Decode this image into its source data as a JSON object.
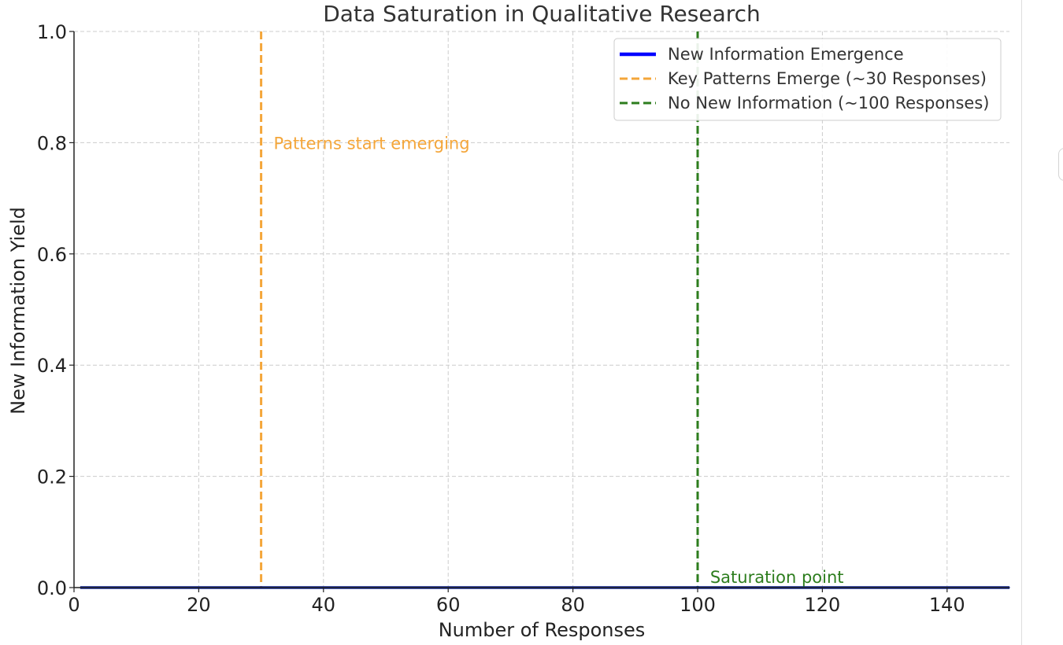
{
  "chart_data": {
    "type": "line",
    "title": "Data Saturation in Qualitative Research",
    "xlabel": "Number of Responses",
    "ylabel": "New Information Yield",
    "xlim": [
      0,
      150
    ],
    "ylim": [
      0,
      1.0
    ],
    "xticks": [
      0,
      20,
      40,
      60,
      80,
      100,
      120,
      140
    ],
    "xtick_labels": [
      "0",
      "20",
      "40",
      "60",
      "80",
      "100",
      "120",
      "140"
    ],
    "yticks": [
      0.0,
      0.2,
      0.4,
      0.6,
      0.8,
      1.0
    ],
    "ytick_labels": [
      "0.0",
      "0.2",
      "0.4",
      "0.6",
      "0.8",
      "1.0"
    ],
    "grid": true,
    "legend_position": "top-right",
    "series": [
      {
        "name": "New Information Emergence",
        "color": "#0000ff",
        "style": "solid",
        "x": [
          1,
          10,
          20,
          30,
          40,
          50,
          60,
          70,
          80,
          90,
          100,
          110,
          120,
          130,
          140,
          150
        ],
        "y": [
          0,
          0,
          0,
          0,
          0,
          0,
          0,
          0,
          0,
          0,
          0,
          0,
          0,
          0,
          0,
          0
        ]
      }
    ],
    "vlines": [
      {
        "name": "Key Patterns Emerge (~30 Responses)",
        "x": 30,
        "color": "#f4a63a",
        "style": "dashed"
      },
      {
        "name": "No New Information (~100 Responses)",
        "x": 100,
        "color": "#2d7d1e",
        "style": "dashed"
      }
    ],
    "annotations": [
      {
        "text": "Patterns start emerging",
        "x": 32,
        "y": 0.8,
        "color": "#f4a63a"
      },
      {
        "text": "Saturation point",
        "x": 102,
        "y": 0.02,
        "color": "#2d7d1e"
      }
    ]
  }
}
